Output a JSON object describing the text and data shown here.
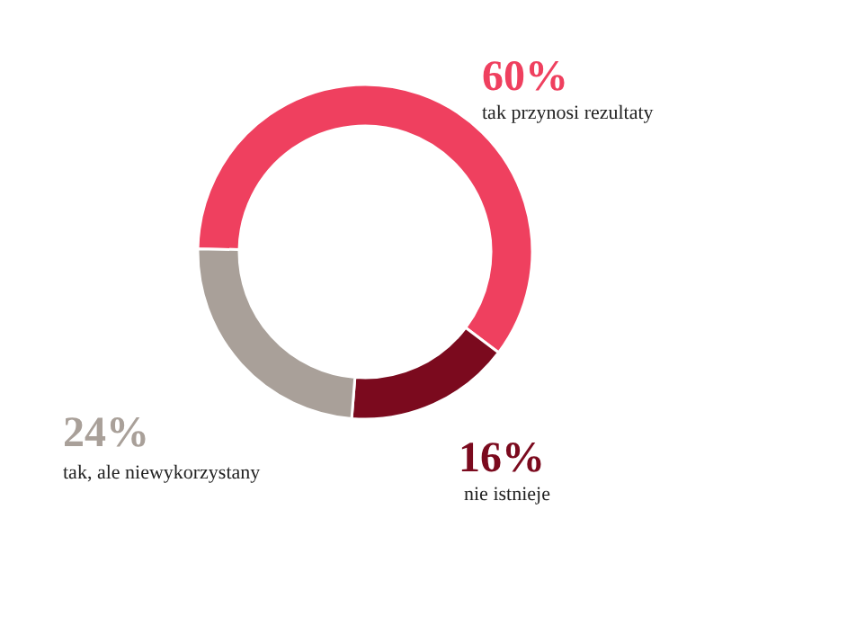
{
  "chart_data": {
    "type": "donut",
    "categories": [
      "tak przynosi rezultaty",
      "nie istnieje",
      "tak, ale niewykorzystany"
    ],
    "values": [
      60,
      16,
      24
    ],
    "value_labels": [
      "60%",
      "16%",
      "24%"
    ],
    "colors": [
      "#ef405f",
      "#7b0a1e",
      "#a9a099"
    ]
  }
}
